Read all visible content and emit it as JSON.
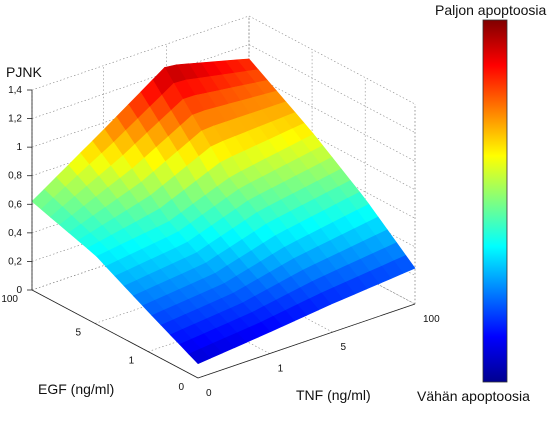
{
  "chart_data": {
    "type": "surface",
    "zlabel": "PJNK",
    "xlabel": "TNF (ng/ml)",
    "ylabel": "EGF (ng/ml)",
    "z_ticks": [
      "0",
      "0,2",
      "0,4",
      "0,6",
      "0,8",
      "1",
      "1,2",
      "1,4"
    ],
    "zlim": [
      0,
      1.4
    ],
    "tnf_ticks": [
      "0",
      "1",
      "5",
      "100"
    ],
    "egf_ticks": [
      "0",
      "1",
      "5",
      "100"
    ],
    "grid": true,
    "z_values": [
      [
        0.1,
        0.15,
        0.2,
        0.25
      ],
      [
        0.28,
        0.33,
        0.45,
        0.55
      ],
      [
        0.48,
        0.55,
        0.72,
        0.82
      ],
      [
        0.62,
        0.95,
        1.25,
        1.1
      ]
    ],
    "colorbar": {
      "top_label": "Paljon apoptoosia",
      "bottom_label": "Vähän apoptoosia",
      "colormap": "jet"
    }
  }
}
